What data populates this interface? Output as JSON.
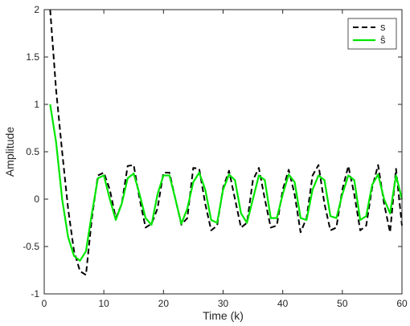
{
  "chart_data": {
    "type": "line",
    "xlabel": "Time (k)",
    "ylabel": "Amplitude",
    "xlim": [
      0,
      60
    ],
    "ylim": [
      -1,
      2
    ],
    "xticks": [
      0,
      10,
      20,
      30,
      40,
      50,
      60
    ],
    "yticks": [
      -1,
      -0.5,
      0,
      0.5,
      1,
      1.5,
      2
    ],
    "ytick_labels": [
      "-1",
      "-0.5",
      "0",
      "0.5",
      "1",
      "1.5",
      "2"
    ],
    "grid": false,
    "legend_position": "top-right",
    "series": [
      {
        "name": "s",
        "color": "#000000",
        "style": "dashed",
        "x": [
          1,
          2,
          3,
          4,
          5,
          6,
          7,
          8,
          9,
          10,
          11,
          12,
          13,
          14,
          15,
          16,
          17,
          18,
          19,
          20,
          21,
          22,
          23,
          24,
          25,
          26,
          27,
          28,
          29,
          30,
          31,
          32,
          33,
          34,
          35,
          36,
          37,
          38,
          39,
          40,
          41,
          42,
          43,
          44,
          45,
          46,
          47,
          48,
          49,
          50,
          51,
          52,
          53,
          54,
          55,
          56,
          57,
          58,
          59,
          60
        ],
        "y": [
          2.0,
          1.15,
          0.5,
          -0.1,
          -0.55,
          -0.76,
          -0.8,
          -0.2,
          0.25,
          0.28,
          0.1,
          -0.2,
          -0.05,
          0.35,
          0.36,
          0.0,
          -0.3,
          -0.26,
          -0.1,
          0.28,
          0.28,
          0.0,
          -0.27,
          -0.2,
          0.33,
          0.32,
          -0.05,
          -0.33,
          -0.28,
          0.12,
          0.3,
          0.0,
          -0.3,
          -0.25,
          0.2,
          0.33,
          0.0,
          -0.3,
          -0.28,
          0.1,
          0.31,
          0.05,
          -0.35,
          -0.2,
          0.25,
          0.36,
          -0.05,
          -0.33,
          -0.3,
          0.1,
          0.35,
          0.05,
          -0.33,
          -0.28,
          0.12,
          0.36,
          -0.05,
          -0.35,
          0.32,
          -0.28
        ]
      },
      {
        "name": "ŝ",
        "color": "#00e600",
        "style": "solid",
        "x": [
          1,
          2,
          3,
          4,
          5,
          6,
          7,
          8,
          9,
          10,
          11,
          12,
          13,
          14,
          15,
          16,
          17,
          18,
          19,
          20,
          21,
          22,
          23,
          24,
          25,
          26,
          27,
          28,
          29,
          30,
          31,
          32,
          33,
          34,
          35,
          36,
          37,
          38,
          39,
          40,
          41,
          42,
          43,
          44,
          45,
          46,
          47,
          48,
          49,
          50,
          51,
          52,
          53,
          54,
          55,
          56,
          57,
          58,
          59,
          60
        ],
        "y": [
          1.0,
          0.6,
          0.0,
          -0.4,
          -0.6,
          -0.65,
          -0.55,
          -0.15,
          0.22,
          0.25,
          0.0,
          -0.22,
          -0.05,
          0.22,
          0.27,
          0.05,
          -0.2,
          -0.27,
          0.05,
          0.25,
          0.25,
          0.0,
          -0.26,
          -0.1,
          0.18,
          0.28,
          0.1,
          -0.22,
          -0.25,
          0.1,
          0.26,
          0.2,
          -0.15,
          -0.25,
          0.0,
          0.25,
          0.2,
          -0.2,
          -0.2,
          0.05,
          0.26,
          0.18,
          -0.2,
          -0.22,
          0.1,
          0.25,
          0.2,
          -0.18,
          -0.2,
          0.05,
          0.25,
          0.2,
          -0.22,
          -0.18,
          0.15,
          0.26,
          0.0,
          -0.15,
          0.25,
          0.0
        ]
      }
    ]
  }
}
